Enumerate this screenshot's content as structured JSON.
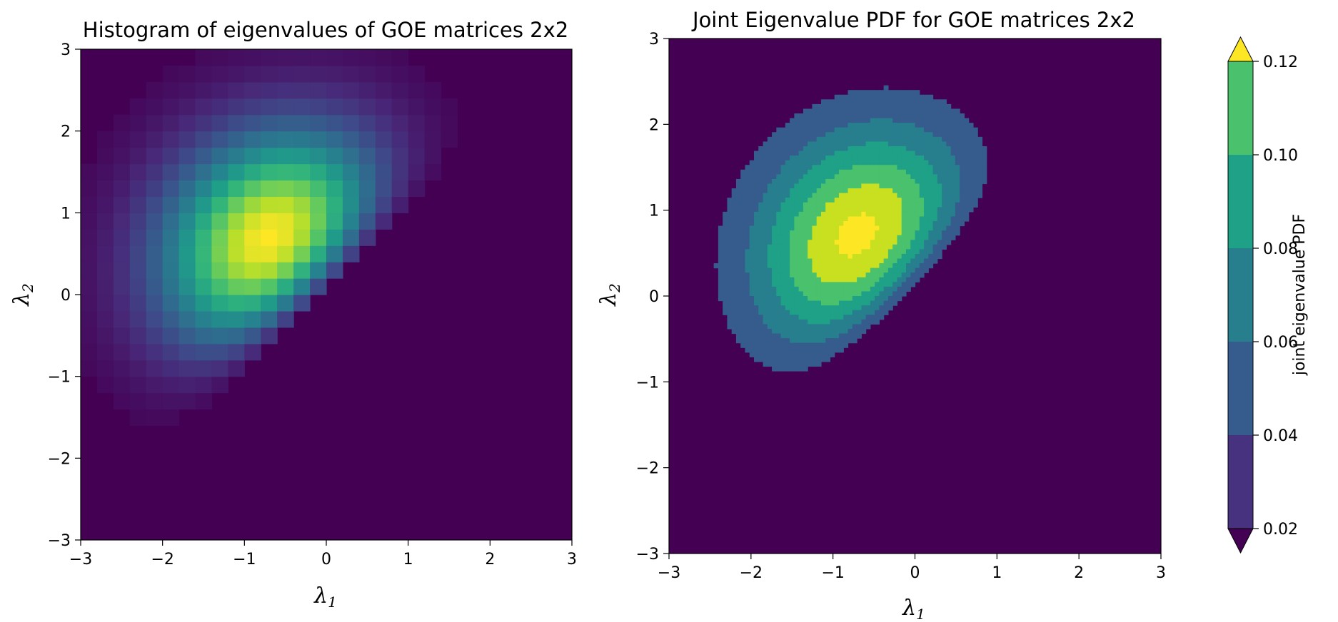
{
  "chart_data": [
    {
      "type": "heatmap",
      "title": "Histogram of eigenvalues of GOE matrices 2x2",
      "xlabel": "λ1",
      "ylabel": "λ2",
      "xlim": [
        -3,
        3
      ],
      "ylim": [
        -3,
        3
      ],
      "xticks": [
        "−3",
        "−2",
        "−1",
        "0",
        "1",
        "2",
        "3"
      ],
      "yticks": [
        "−3",
        "−2",
        "−1",
        "0",
        "1",
        "2",
        "3"
      ],
      "bins": 30,
      "peak": {
        "x": -0.7,
        "y": 0.7
      },
      "colormap": "viridis",
      "background_color": "#440154"
    },
    {
      "type": "contour",
      "title": "Joint Eigenvalue PDF for GOE matrices 2x2",
      "xlabel": "λ1",
      "ylabel": "λ2",
      "xlim": [
        -3,
        3
      ],
      "ylim": [
        -3,
        3
      ],
      "xticks": [
        "−3",
        "−2",
        "−1",
        "0",
        "1",
        "2",
        "3"
      ],
      "yticks": [
        "−3",
        "−2",
        "−1",
        "0",
        "1",
        "2",
        "3"
      ],
      "levels": [
        0.02,
        0.04,
        0.06,
        0.08,
        0.1,
        0.12
      ],
      "level_colors": [
        "#440154",
        "#46327e",
        "#365c8d",
        "#277f8e",
        "#1fa187",
        "#4ac16d",
        "#c8e020",
        "#fde725"
      ],
      "peak": {
        "x": -0.7,
        "y": 0.7
      },
      "colorbar": {
        "label": "joint eigenvalue PDF",
        "ticks": [
          "0.02",
          "0.04",
          "0.06",
          "0.08",
          "0.10",
          "0.12"
        ],
        "extend": "both"
      }
    }
  ]
}
